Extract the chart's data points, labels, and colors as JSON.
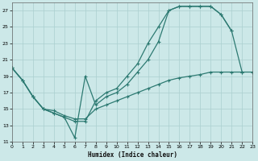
{
  "bg_color": "#cce8e8",
  "line_color": "#2d7a72",
  "grid_color": "#aacfcf",
  "xlabel": "Humidex (Indice chaleur)",
  "xlim": [
    0,
    23
  ],
  "ylim": [
    11,
    28
  ],
  "yticks": [
    11,
    13,
    15,
    17,
    19,
    21,
    23,
    25,
    27
  ],
  "xticks": [
    0,
    1,
    2,
    3,
    4,
    5,
    6,
    7,
    8,
    9,
    10,
    11,
    12,
    13,
    14,
    15,
    16,
    17,
    18,
    19,
    20,
    21,
    22,
    23
  ],
  "series": [
    {
      "x": [
        0,
        1,
        2,
        3,
        4,
        5,
        6,
        7,
        8,
        9,
        10,
        11,
        12,
        13,
        14,
        15,
        16,
        17,
        18,
        19,
        20,
        21,
        22,
        23
      ],
      "y": [
        20.0,
        18.5,
        16.5,
        15.0,
        14.5,
        14.0,
        11.5,
        19.0,
        15.5,
        16.5,
        17.0,
        18.0,
        19.5,
        21.0,
        23.2,
        27.0,
        27.5,
        27.5,
        27.5,
        27.5,
        26.5,
        24.5,
        19.5,
        null
      ]
    },
    {
      "x": [
        0,
        1,
        2,
        3,
        4,
        5,
        6,
        7,
        8,
        9,
        10,
        11,
        12,
        13,
        14,
        15,
        16,
        17,
        18,
        19,
        20,
        21,
        22,
        23
      ],
      "y": [
        20.0,
        18.5,
        16.5,
        15.0,
        14.5,
        14.0,
        13.5,
        13.5,
        16.0,
        17.0,
        17.5,
        19.0,
        20.5,
        23.0,
        25.0,
        27.0,
        27.5,
        27.5,
        27.5,
        27.5,
        26.5,
        24.5,
        null,
        null
      ]
    },
    {
      "x": [
        0,
        1,
        2,
        3,
        4,
        5,
        6,
        7,
        8,
        9,
        10,
        11,
        12,
        13,
        14,
        15,
        16,
        17,
        18,
        19,
        20,
        21,
        22,
        23
      ],
      "y": [
        20.0,
        18.5,
        16.5,
        15.0,
        14.8,
        14.2,
        13.8,
        13.8,
        15.0,
        15.5,
        16.0,
        16.5,
        17.0,
        17.5,
        18.0,
        18.5,
        18.8,
        19.0,
        19.2,
        19.5,
        19.5,
        19.5,
        19.5,
        19.5
      ]
    }
  ]
}
